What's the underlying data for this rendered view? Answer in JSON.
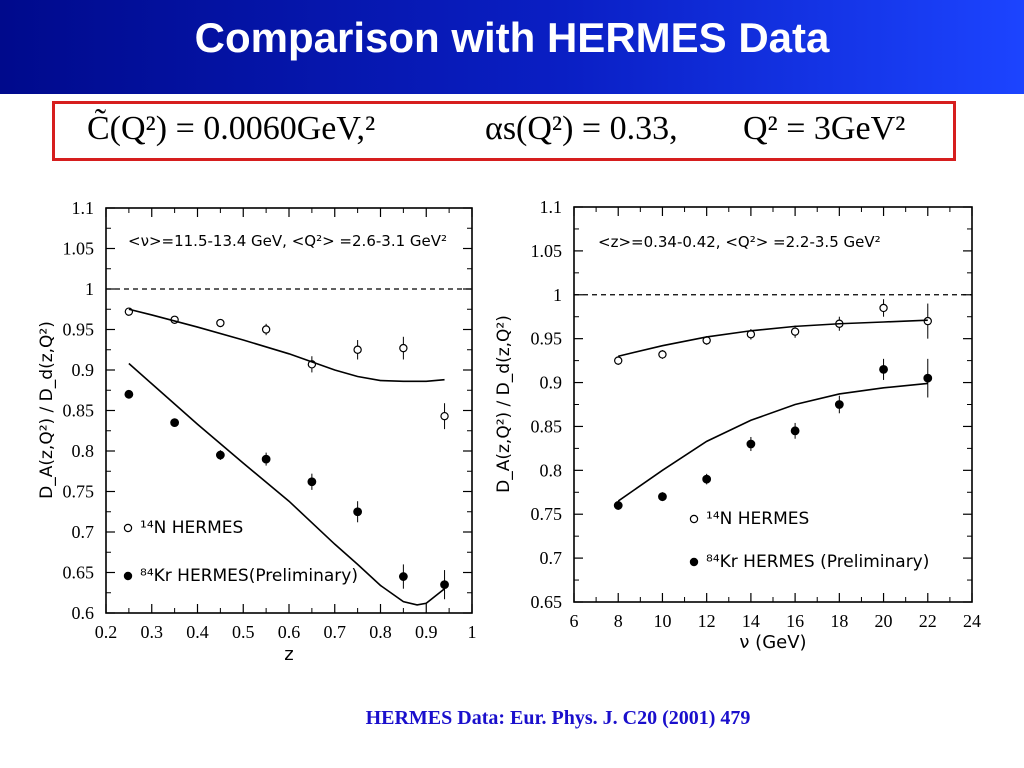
{
  "title": "Comparison with HERMES Data",
  "formula": {
    "part1": "C̃(Q²) = 0.0060GeV,²",
    "part2": "αs(Q²) = 0.33,",
    "part3": "Q² = 3GeV²"
  },
  "source": "HERMES Data: Eur. Phys. J. C20 (2001) 479",
  "chart_data": [
    {
      "type": "scatter",
      "title": "",
      "annotation": "<ν>=11.5-13.4 GeV,  <Q²> =2.6-3.1 GeV²",
      "xlabel": "z",
      "ylabel": "D_A(z,Q²) / D_d(z,Q²)",
      "xlim": [
        0.2,
        1.0
      ],
      "ylim": [
        0.6,
        1.1
      ],
      "xticks": [
        "0.2",
        "0.3",
        "0.4",
        "0.5",
        "0.6",
        "0.7",
        "0.8",
        "0.9",
        "1"
      ],
      "yticks": [
        "0.6",
        "0.65",
        "0.7",
        "0.75",
        "0.8",
        "0.85",
        "0.9",
        "0.95",
        "1",
        "1.05",
        "1.1"
      ],
      "reference_line": 1.0,
      "legend_placement": "bottom-left",
      "series": [
        {
          "name": "¹⁴N HERMES",
          "marker": "open-circle",
          "x": [
            0.25,
            0.35,
            0.45,
            0.55,
            0.65,
            0.75,
            0.85,
            0.94
          ],
          "y": [
            0.972,
            0.962,
            0.958,
            0.95,
            0.907,
            0.925,
            0.927,
            0.843
          ],
          "err": [
            0.004,
            0.004,
            0.005,
            0.007,
            0.01,
            0.012,
            0.014,
            0.016
          ]
        },
        {
          "name": "⁸⁴Kr HERMES(Preliminary)",
          "marker": "filled-circle",
          "x": [
            0.25,
            0.35,
            0.45,
            0.55,
            0.65,
            0.75,
            0.85,
            0.94
          ],
          "y": [
            0.87,
            0.835,
            0.795,
            0.79,
            0.762,
            0.725,
            0.645,
            0.635
          ],
          "err": [
            0.004,
            0.005,
            0.006,
            0.008,
            0.01,
            0.013,
            0.015,
            0.018
          ]
        },
        {
          "name": "",
          "type": "line",
          "x": [
            0.25,
            0.3,
            0.4,
            0.5,
            0.6,
            0.7,
            0.75,
            0.8,
            0.85,
            0.9,
            0.94
          ],
          "y": [
            0.975,
            0.968,
            0.953,
            0.937,
            0.92,
            0.9,
            0.892,
            0.887,
            0.886,
            0.886,
            0.888
          ]
        },
        {
          "name": "",
          "type": "line",
          "x": [
            0.25,
            0.3,
            0.4,
            0.5,
            0.6,
            0.7,
            0.75,
            0.8,
            0.85,
            0.88,
            0.9,
            0.94
          ],
          "y": [
            0.908,
            0.883,
            0.833,
            0.785,
            0.738,
            0.685,
            0.66,
            0.634,
            0.614,
            0.61,
            0.612,
            0.63
          ]
        }
      ]
    },
    {
      "type": "scatter",
      "title": "",
      "annotation": "<z>=0.34-0.42,  <Q²> =2.2-3.5 GeV²",
      "xlabel": "ν (GeV)",
      "ylabel": "D_A(z,Q²) / D_d(z,Q²)",
      "xlim": [
        6,
        24
      ],
      "ylim": [
        0.65,
        1.1
      ],
      "xticks": [
        "6",
        "8",
        "10",
        "12",
        "14",
        "16",
        "18",
        "20",
        "22",
        "24"
      ],
      "yticks": [
        "0.65",
        "0.7",
        "0.75",
        "0.8",
        "0.85",
        "0.9",
        "0.95",
        "1",
        "1.05",
        "1.1"
      ],
      "reference_line": 1.0,
      "legend_placement": "bottom-right",
      "series": [
        {
          "name": "¹⁴N HERMES",
          "marker": "open-circle",
          "x": [
            8,
            10,
            12,
            14,
            16,
            18,
            20,
            22
          ],
          "y": [
            0.925,
            0.932,
            0.948,
            0.955,
            0.958,
            0.967,
            0.985,
            0.97
          ],
          "err": [
            0.005,
            0.005,
            0.005,
            0.006,
            0.007,
            0.008,
            0.01,
            0.02
          ]
        },
        {
          "name": "⁸⁴Kr HERMES (Preliminary)",
          "marker": "filled-circle",
          "x": [
            8,
            10,
            12,
            14,
            16,
            18,
            20,
            22
          ],
          "y": [
            0.76,
            0.77,
            0.79,
            0.83,
            0.845,
            0.875,
            0.915,
            0.905
          ],
          "err": [
            0.005,
            0.005,
            0.006,
            0.008,
            0.009,
            0.01,
            0.012,
            0.022
          ]
        },
        {
          "name": "",
          "type": "line",
          "x": [
            8,
            10,
            12,
            14,
            16,
            18,
            20,
            22
          ],
          "y": [
            0.93,
            0.942,
            0.952,
            0.959,
            0.964,
            0.967,
            0.969,
            0.971
          ]
        },
        {
          "name": "",
          "type": "line",
          "x": [
            8,
            10,
            12,
            14,
            16,
            18,
            20,
            22
          ],
          "y": [
            0.765,
            0.8,
            0.833,
            0.857,
            0.875,
            0.887,
            0.894,
            0.899
          ]
        }
      ]
    }
  ]
}
